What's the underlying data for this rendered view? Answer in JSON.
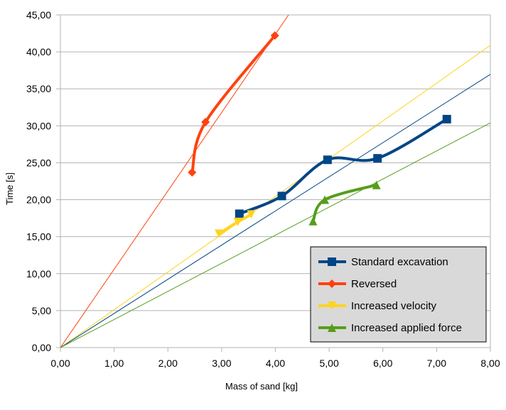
{
  "chart_data": {
    "type": "line",
    "xlabel": "Mass of sand [kg]",
    "ylabel": "Time [s]",
    "xlim": [
      0,
      8
    ],
    "ylim": [
      0,
      45
    ],
    "x_ticks": [
      0,
      1,
      2,
      3,
      4,
      5,
      6,
      7,
      8
    ],
    "y_ticks": [
      0,
      5,
      10,
      15,
      20,
      25,
      30,
      35,
      40,
      45
    ],
    "x_tick_labels": [
      "0,00",
      "1,00",
      "2,00",
      "3,00",
      "4,00",
      "5,00",
      "6,00",
      "7,00",
      "8,00"
    ],
    "y_tick_labels": [
      "0,00",
      "5,00",
      "10,00",
      "15,00",
      "20,00",
      "25,00",
      "30,00",
      "35,00",
      "40,00",
      "45,00"
    ],
    "grid": "horizontal",
    "legend_position": "bottom-right",
    "series": [
      {
        "name": "Standard excavation",
        "color": "#004586",
        "marker": "square",
        "x": [
          3.33,
          4.12,
          4.97,
          5.9,
          7.19
        ],
        "y": [
          18.1,
          20.5,
          25.4,
          25.6,
          30.9
        ]
      },
      {
        "name": "Reversed",
        "color": "#ff420e",
        "marker": "diamond",
        "x": [
          2.45,
          2.7,
          3.99
        ],
        "y": [
          23.7,
          30.5,
          42.2
        ]
      },
      {
        "name": "Increased velocity",
        "color": "#ffd320",
        "marker": "triangle-down",
        "x": [
          2.95,
          3.3,
          3.55
        ],
        "y": [
          15.4,
          17.0,
          18.0
        ]
      },
      {
        "name": "Increased applied force",
        "color": "#579d1c",
        "marker": "triangle-up",
        "x": [
          4.7,
          4.92,
          5.88
        ],
        "y": [
          17.1,
          20.0,
          22.0
        ]
      }
    ],
    "trendlines": [
      {
        "color": "#ff420e",
        "slope": 10.6
      },
      {
        "color": "#ffd320",
        "slope": 5.11
      },
      {
        "color": "#004586",
        "slope": 4.62
      },
      {
        "color": "#579d1c",
        "slope": 3.8
      }
    ],
    "colors": {
      "grid": "#b3b3b3",
      "legend_bg": "#d9d9d9"
    }
  }
}
